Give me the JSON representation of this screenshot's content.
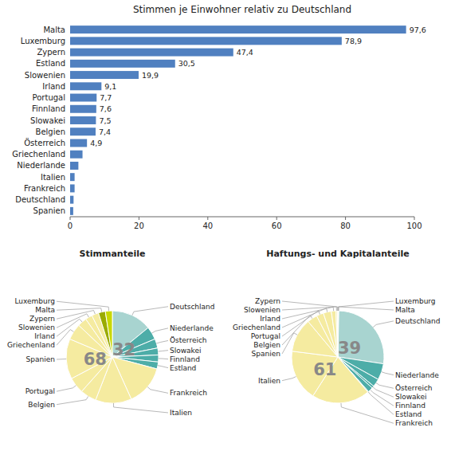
{
  "chart_data": [
    {
      "type": "bar",
      "orientation": "horizontal",
      "title": "Stimmen je Einwohner relativ zu Deutschland",
      "categories": [
        "Malta",
        "Luxemburg",
        "Zypern",
        "Estland",
        "Slowenien",
        "Irland",
        "Portugal",
        "Finnland",
        "Slowakei",
        "Belgien",
        "Österreich",
        "Griechenland",
        "Niederlande",
        "Italien",
        "Frankreich",
        "Deutschland",
        "Spanien"
      ],
      "values": [
        97.6,
        78.9,
        47.4,
        30.5,
        19.9,
        9.1,
        7.7,
        7.6,
        7.5,
        7.4,
        4.9,
        3.6,
        2.4,
        1.3,
        1.3,
        1.0,
        0.9
      ],
      "value_labels": [
        "97,6",
        "78,9",
        "47,4",
        "30,5",
        "19,9",
        "9,1",
        "7,7",
        "7,6",
        "7,5",
        "7,4",
        "4,9",
        null,
        null,
        null,
        null,
        null,
        null
      ],
      "data_labels": true,
      "color": "#5080C0",
      "xlim": [
        0,
        100
      ],
      "xticks": [
        0,
        20,
        40,
        60,
        80,
        100
      ]
    },
    {
      "type": "pie",
      "title": "Stimmanteile",
      "categories": [
        "Deutschland",
        "Niederlande",
        "Österreich",
        "Slowakei",
        "Finnland",
        "Estland",
        "Frankreich",
        "Italien",
        "Belgien",
        "Portugal",
        "Spanien",
        "Griechenland",
        "Irland",
        "Slowenien",
        "Zypern",
        "Malta",
        "Luxemburg"
      ],
      "values": [
        8.7,
        2.8,
        2.0,
        1.5,
        1.5,
        1.5,
        8.7,
        7.8,
        3.5,
        3.5,
        8.7,
        3.5,
        2.0,
        1.5,
        1.5,
        1.5,
        1.5
      ],
      "colors": [
        "#A8D4D0",
        "#4DADA8",
        "#4DADA8",
        "#4DADA8",
        "#4DADA8",
        "#4DADA8",
        "#F5EBA0",
        "#F5EBA0",
        "#F5EBA0",
        "#F5EBA0",
        "#F5EBA0",
        "#F5EBA0",
        "#F5EBA0",
        "#F5EBA0",
        "#F5EBA0",
        "#9AAB00",
        "#C8D800"
      ],
      "annotations": [
        "68",
        "32"
      ]
    },
    {
      "type": "pie",
      "title": "Haftungs- und Kapitalanteile",
      "categories": [
        "Luxemburg",
        "Malta",
        "Deutschland",
        "Niederlande",
        "Österreich",
        "Slowakei",
        "Finnland",
        "Estland",
        "Frankreich",
        "Italien",
        "Spanien",
        "Belgien",
        "Portugal",
        "Griechenland",
        "Irland",
        "Slowenien",
        "Zypern"
      ],
      "values": [
        0.25,
        0.08,
        27.0,
        5.7,
        2.8,
        0.8,
        1.8,
        0.26,
        20.3,
        17.9,
        11.9,
        3.5,
        2.5,
        2.8,
        1.6,
        0.47,
        0.2
      ],
      "colors": [
        "#A8D4D0",
        "#A8D4D0",
        "#A8D4D0",
        "#4DADA8",
        "#4DADA8",
        "#4DADA8",
        "#4DADA8",
        "#4DADA8",
        "#F5EBA0",
        "#F5EBA0",
        "#F5EBA0",
        "#F5EBA0",
        "#F5EBA0",
        "#F5EBA0",
        "#F5EBA0",
        "#F5EBA0",
        "#F5EBA0"
      ],
      "annotations": [
        "39",
        "61"
      ]
    }
  ]
}
